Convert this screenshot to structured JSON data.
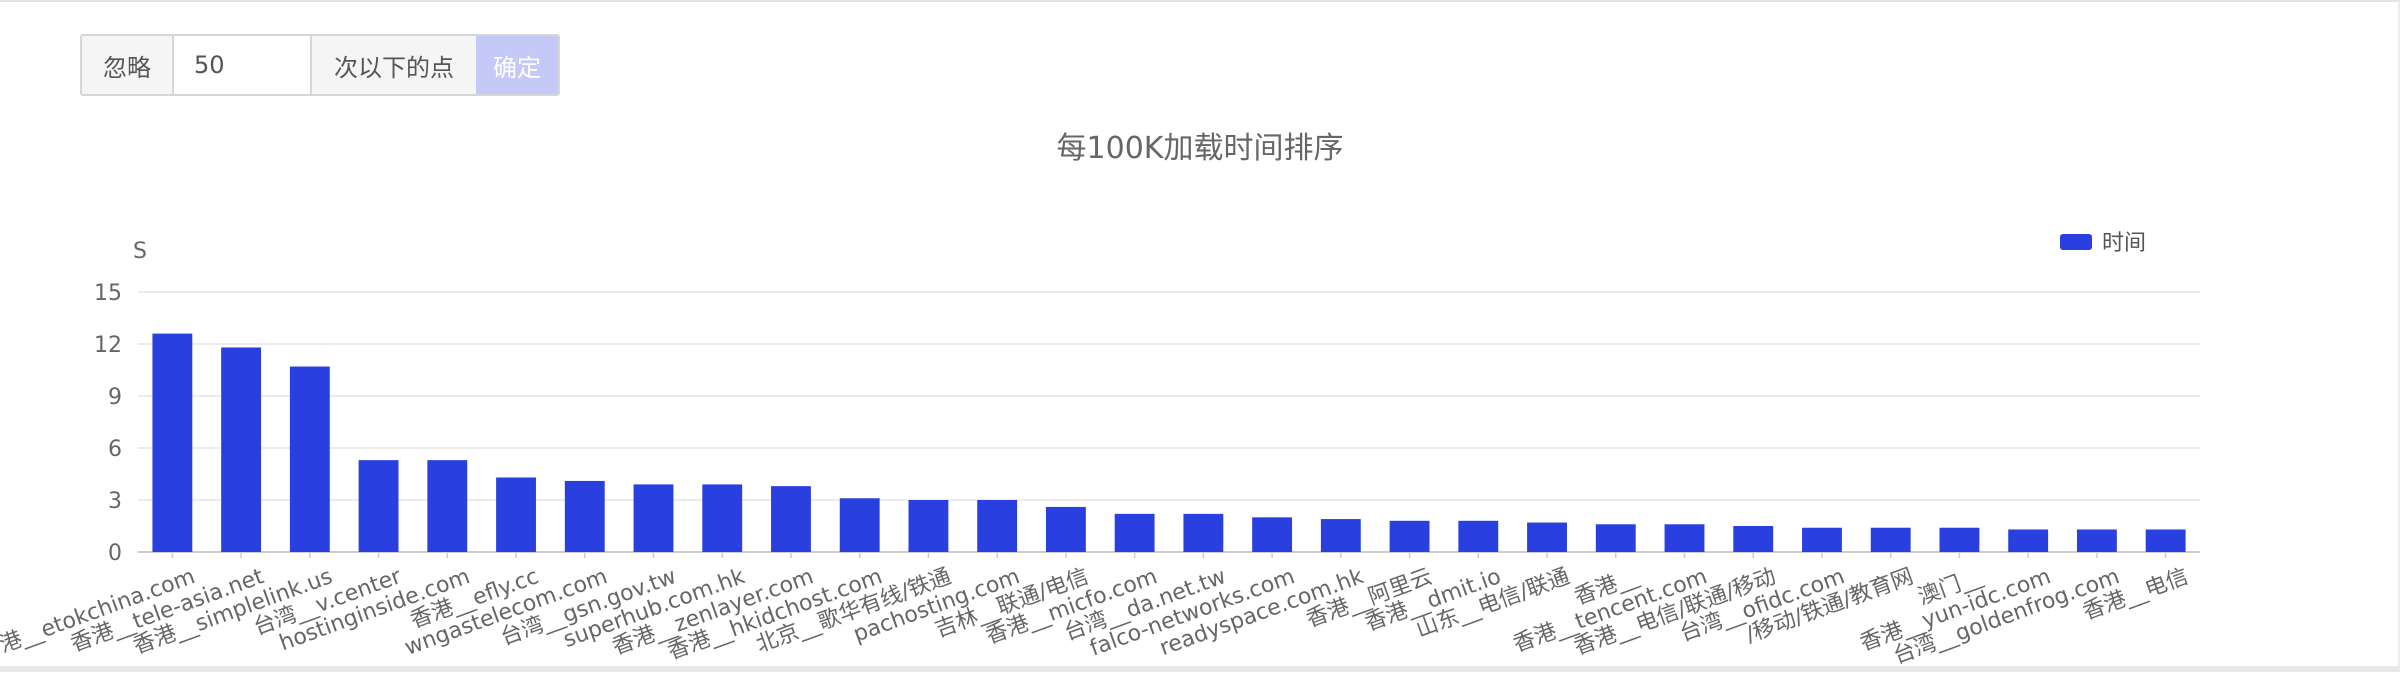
{
  "filter": {
    "prefix_label": "忽略",
    "threshold_value": "50",
    "suffix_label": "次以下的点",
    "confirm_label": "确定",
    "confirm_color": "#c4c9f7"
  },
  "chart_data": {
    "type": "bar",
    "title": "每100K加载时间排序",
    "ylabel": "S",
    "xlabel": "",
    "ylim": [
      0,
      15
    ],
    "yticks": [
      0,
      3,
      6,
      9,
      12,
      15
    ],
    "grid": true,
    "legend_position": "top-right",
    "bar_color": "#2a3fe0",
    "categories": [
      "香港__etokchina.com",
      "香港__tele-asia.net",
      "香港__simplelink.us",
      "台湾__v.center",
      "hostinginside.com",
      "香港__efly.cc",
      "wngastelecom.com",
      "台湾__gsn.gov.tw",
      "superhub.com.hk",
      "香港__zenlayer.com",
      "香港__hkidchost.com",
      "北京__歌华有线/铁通",
      "pachosting.com",
      "吉林__联通/电信",
      "香港__micfo.com",
      "台湾__da.net.tw",
      "falco-networks.com",
      "readyspace.com.hk",
      "香港__阿里云",
      "香港__dmit.io",
      "山东__电信/联通",
      "香港__",
      "香港__tencent.com",
      "香港__电信/联通/移动",
      "台湾__ofidc.com",
      "/移动/铁通/教育网",
      "澳门__",
      "香港__yun-idc.com",
      "台湾__goldenfrog.com",
      "香港__电信"
    ],
    "series": [
      {
        "name": "时间",
        "values": [
          12.6,
          11.8,
          10.7,
          5.3,
          5.3,
          4.3,
          4.1,
          3.9,
          3.9,
          3.8,
          3.1,
          3.0,
          3.0,
          2.6,
          2.2,
          2.2,
          2.0,
          1.9,
          1.8,
          1.8,
          1.7,
          1.6,
          1.6,
          1.5,
          1.4,
          1.4,
          1.4,
          1.3,
          1.3,
          1.3
        ]
      }
    ]
  }
}
